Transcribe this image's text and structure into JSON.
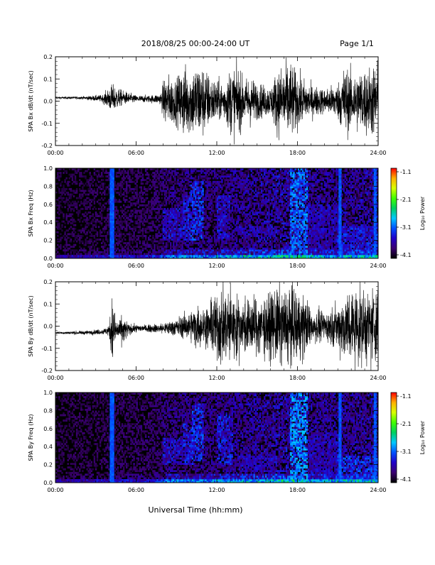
{
  "header": {
    "title": "2018/08/25  00:00-24:00 UT",
    "page_label": "Page 1/1"
  },
  "footer": {
    "xlabel": "Universal Time (hh:mm)"
  },
  "colorbar": {
    "label": "Log₁₀ Power",
    "ticks": [
      "-1.1",
      "-2.1",
      "-3.1",
      "-4.1"
    ],
    "range": [
      -4.1,
      -1.1
    ],
    "colors": [
      "#000000",
      "#3b0070",
      "#2200c8",
      "#0050ff",
      "#00c8ff",
      "#00d060",
      "#40ff00",
      "#d8ff00",
      "#ffb000",
      "#ff0000"
    ]
  },
  "chart_data": [
    {
      "type": "line",
      "ylabel": "SPA Bx dB/dt (nT/sec)",
      "xlim": [
        0,
        24
      ],
      "ylim": [
        -0.2,
        0.2
      ],
      "x_ticks": [
        "00:00",
        "06:00",
        "12:00",
        "18:00",
        "24:00"
      ],
      "y_ticks": [
        "0.2",
        "0.1",
        "0.0",
        "-0.1",
        "-0.2"
      ],
      "envelope": {
        "hours": [
          0,
          2,
          3.5,
          4.2,
          5,
          6,
          7,
          7.8,
          8.2,
          9,
          9.5,
          10,
          10.5,
          11,
          11.5,
          12,
          12.5,
          13,
          13.5,
          14,
          14.5,
          15,
          16,
          16.5,
          17,
          17.5,
          18,
          18.5,
          19,
          20,
          21,
          21.5,
          22,
          23,
          24
        ],
        "amplitude": [
          0.006,
          0.008,
          0.02,
          0.08,
          0.04,
          0.02,
          0.02,
          0.03,
          0.15,
          0.12,
          0.2,
          0.18,
          0.22,
          0.2,
          0.14,
          0.12,
          0.1,
          0.18,
          0.2,
          0.12,
          0.14,
          0.1,
          0.08,
          0.18,
          0.2,
          0.22,
          0.15,
          0.12,
          0.09,
          0.07,
          0.1,
          0.2,
          0.16,
          0.18,
          0.22
        ],
        "baseline": [
          0.015,
          0.015,
          0.012,
          0.01,
          0.015,
          0.01,
          0.01,
          0.01,
          0.0,
          0.0,
          0.0,
          0.0,
          0.0,
          0.0,
          0.0,
          0.0,
          0.0,
          0.0,
          0.0,
          0.0,
          0.0,
          0.0,
          0.0,
          0.0,
          0.0,
          0.0,
          0.0,
          0.0,
          0.0,
          0.0,
          0.0,
          0.0,
          0.0,
          0.0,
          0.0
        ]
      }
    },
    {
      "type": "heatmap",
      "ylabel": "SPA Bx Freq (Hz)",
      "xlim": [
        0,
        24
      ],
      "ylim": [
        0.0,
        1.0
      ],
      "x_ticks": [
        "00:00",
        "06:00",
        "12:00",
        "18:00",
        "24:00"
      ],
      "y_ticks": [
        "1.0",
        "0.8",
        "0.6",
        "0.4",
        "0.2",
        "0.0"
      ],
      "bands": [
        {
          "hours": [
            8.0,
            9.5
          ],
          "freq": [
            0.2,
            0.55
          ],
          "level": -3.2
        },
        {
          "hours": [
            9.5,
            10.0
          ],
          "freq": [
            0.2,
            0.7
          ],
          "level": -3.1
        },
        {
          "hours": [
            10.0,
            11.0
          ],
          "freq": [
            0.2,
            0.85
          ],
          "level": -3.0
        },
        {
          "hours": [
            12.0,
            13.0
          ],
          "freq": [
            0.2,
            0.7
          ],
          "level": -3.2
        },
        {
          "hours": [
            13.5,
            16.5
          ],
          "freq": [
            0.25,
            0.35
          ],
          "level": -3.3
        },
        {
          "hours": [
            17.5,
            18.8
          ],
          "freq": [
            0.0,
            1.0
          ],
          "level": -2.8
        },
        {
          "hours": [
            18.8,
            21.0
          ],
          "freq": [
            0.0,
            0.6
          ],
          "level": -3.3
        },
        {
          "hours": [
            21.0,
            24.0
          ],
          "freq": [
            0.0,
            0.35
          ],
          "level": -3.1
        }
      ],
      "spikes_hours": [
        4.2,
        21.2,
        23.8
      ]
    },
    {
      "type": "line",
      "ylabel": "SPA By dB/dt (nT/sec)",
      "xlim": [
        0,
        24
      ],
      "ylim": [
        -0.2,
        0.2
      ],
      "x_ticks": [
        "00:00",
        "06:00",
        "12:00",
        "18:00",
        "24:00"
      ],
      "y_ticks": [
        "0.2",
        "0.1",
        "0.0",
        "-0.1",
        "-0.2"
      ],
      "envelope": {
        "hours": [
          0,
          2,
          3.5,
          4.0,
          4.2,
          4.5,
          5,
          5.5,
          6,
          7,
          8,
          9,
          10,
          10.5,
          11,
          11.5,
          12,
          12.5,
          13,
          14,
          15,
          16,
          16.5,
          17,
          17.5,
          18,
          18.5,
          19,
          20,
          21,
          21.5,
          22,
          23,
          24
        ],
        "amplitude": [
          0.006,
          0.01,
          0.015,
          0.03,
          0.2,
          0.05,
          0.08,
          0.03,
          0.02,
          0.02,
          0.03,
          0.05,
          0.08,
          0.12,
          0.1,
          0.13,
          0.2,
          0.22,
          0.2,
          0.15,
          0.16,
          0.18,
          0.22,
          0.2,
          0.22,
          0.2,
          0.18,
          0.1,
          0.08,
          0.12,
          0.2,
          0.22,
          0.2,
          0.22
        ],
        "baseline": [
          -0.03,
          -0.03,
          -0.025,
          -0.02,
          -0.02,
          -0.02,
          -0.02,
          -0.015,
          -0.01,
          -0.01,
          -0.01,
          -0.005,
          0.0,
          0.0,
          0.0,
          0.0,
          0.0,
          0.0,
          0.0,
          0.0,
          0.0,
          0.0,
          0.0,
          0.0,
          0.0,
          0.0,
          0.0,
          0.0,
          0.0,
          0.0,
          0.0,
          0.0,
          0.0,
          0.0
        ]
      }
    },
    {
      "type": "heatmap",
      "ylabel": "SPA By Freq (Hz)",
      "xlim": [
        0,
        24
      ],
      "ylim": [
        0.0,
        1.0
      ],
      "x_ticks": [
        "00:00",
        "06:00",
        "12:00",
        "18:00",
        "24:00"
      ],
      "y_ticks": [
        "1.0",
        "0.8",
        "0.6",
        "0.4",
        "0.2",
        "0.0"
      ],
      "bands": [
        {
          "hours": [
            8.0,
            9.5
          ],
          "freq": [
            0.2,
            0.5
          ],
          "level": -3.2
        },
        {
          "hours": [
            9.5,
            10.2
          ],
          "freq": [
            0.2,
            0.65
          ],
          "level": -3.1
        },
        {
          "hours": [
            10.2,
            11.0
          ],
          "freq": [
            0.25,
            0.88
          ],
          "level": -3.0
        },
        {
          "hours": [
            12.0,
            13.2
          ],
          "freq": [
            0.2,
            0.75
          ],
          "level": -3.1
        },
        {
          "hours": [
            13.5,
            16.5
          ],
          "freq": [
            0.15,
            0.3
          ],
          "level": -3.3
        },
        {
          "hours": [
            17.5,
            18.8
          ],
          "freq": [
            0.0,
            1.0
          ],
          "level": -2.7
        },
        {
          "hours": [
            18.8,
            21.0
          ],
          "freq": [
            0.0,
            0.55
          ],
          "level": -3.3
        },
        {
          "hours": [
            21.0,
            24.0
          ],
          "freq": [
            0.0,
            0.3
          ],
          "level": -3.0
        }
      ],
      "spikes_hours": [
        4.2,
        21.2,
        23.8
      ]
    }
  ]
}
